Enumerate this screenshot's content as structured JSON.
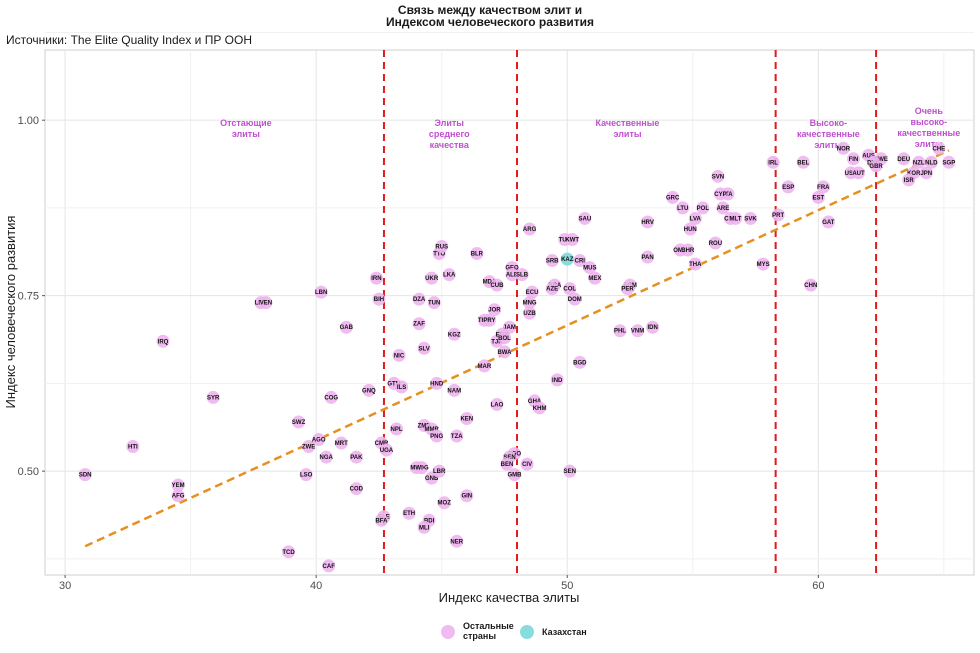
{
  "title_line1": "Связь между качеством элит и",
  "title_line2": "Индексом человеческого развития",
  "subtitle": "Источники: The Elite Quality Index и ПР ООН",
  "chart_data": {
    "type": "scatter",
    "xlabel": "Индекс качества элиты",
    "ylabel": "Индекс человеческого развития",
    "xlim": [
      29.2,
      66.2
    ],
    "ylim": [
      0.352,
      1.1
    ],
    "x_ticks": [
      30,
      40,
      50,
      60
    ],
    "y_ticks": [
      0.5,
      0.75,
      1.0
    ],
    "y_tick_labels": [
      "0.50",
      "0.75",
      "1.00"
    ],
    "grid": true,
    "colors": {
      "other": "#eeb4ee",
      "kazakhstan": "#7ad9d9",
      "trend": "#e69020",
      "threshold": "#dd1c1c",
      "band_label": "#c04fd0"
    },
    "thresholds": [
      42.7,
      48.0,
      58.3,
      62.3
    ],
    "bands": [
      {
        "lines": [
          "Отстающие",
          "элиты"
        ],
        "x": 37.2
      },
      {
        "lines": [
          "Элиты",
          "среднего",
          "качества"
        ],
        "x": 45.3
      },
      {
        "lines": [
          "Качественные",
          "элиты"
        ],
        "x": 52.4
      },
      {
        "lines": [
          "Высоко-",
          "качественные",
          "элиты"
        ],
        "x": 60.4
      },
      {
        "lines": [
          "Очень",
          "высоко-",
          "качественные",
          "элиты"
        ],
        "x": 64.4
      }
    ],
    "trend": {
      "x": [
        30.8,
        65.2
      ],
      "y": [
        0.393,
        0.957
      ]
    },
    "legend": {
      "position": "bottom",
      "items": [
        {
          "label_lines": [
            "Остальные",
            "страны"
          ],
          "group": "other"
        },
        {
          "label_lines": [
            "Казахстан"
          ],
          "group": "kazakhstan"
        }
      ]
    },
    "points": [
      {
        "code": "SDN",
        "x": 30.8,
        "y": 0.495
      },
      {
        "code": "HTI",
        "x": 32.7,
        "y": 0.535
      },
      {
        "code": "IRQ",
        "x": 33.9,
        "y": 0.685
      },
      {
        "code": "YEM",
        "x": 34.5,
        "y": 0.48
      },
      {
        "code": "AFG",
        "x": 34.5,
        "y": 0.465
      },
      {
        "code": "SYR",
        "x": 35.9,
        "y": 0.605
      },
      {
        "code": "LBN",
        "x": 37.8,
        "y": 0.74
      },
      {
        "code": "VEN",
        "x": 38.0,
        "y": 0.74
      },
      {
        "code": "TCD",
        "x": 38.9,
        "y": 0.385
      },
      {
        "code": "SWZ",
        "x": 39.3,
        "y": 0.57
      },
      {
        "code": "ZWE",
        "x": 39.7,
        "y": 0.535
      },
      {
        "code": "LSO",
        "x": 39.6,
        "y": 0.495
      },
      {
        "code": "AGO",
        "x": 40.1,
        "y": 0.545
      },
      {
        "code": "LBN",
        "x": 40.2,
        "y": 0.755
      },
      {
        "code": "NGA",
        "x": 40.4,
        "y": 0.52
      },
      {
        "code": "CAF",
        "x": 40.5,
        "y": 0.365
      },
      {
        "code": "COG",
        "x": 40.6,
        "y": 0.605
      },
      {
        "code": "MRT",
        "x": 41.0,
        "y": 0.54
      },
      {
        "code": "GAB",
        "x": 41.2,
        "y": 0.705
      },
      {
        "code": "PAK",
        "x": 41.6,
        "y": 0.52
      },
      {
        "code": "COD",
        "x": 41.6,
        "y": 0.475
      },
      {
        "code": "GNQ",
        "x": 42.1,
        "y": 0.615
      },
      {
        "code": "IRN",
        "x": 42.4,
        "y": 0.775
      },
      {
        "code": "BIH",
        "x": 42.5,
        "y": 0.745
      },
      {
        "code": "SLE",
        "x": 42.7,
        "y": 0.435
      },
      {
        "code": "BFA",
        "x": 42.6,
        "y": 0.43
      },
      {
        "code": "CMR",
        "x": 42.6,
        "y": 0.54
      },
      {
        "code": "UGA",
        "x": 42.8,
        "y": 0.53
      },
      {
        "code": "GTM",
        "x": 43.1,
        "y": 0.625
      },
      {
        "code": "ILS",
        "x": 43.4,
        "y": 0.62
      },
      {
        "code": "NPL",
        "x": 43.2,
        "y": 0.56
      },
      {
        "code": "NIC",
        "x": 43.3,
        "y": 0.665
      },
      {
        "code": "ETH",
        "x": 43.7,
        "y": 0.44
      },
      {
        "code": "DZA",
        "x": 44.1,
        "y": 0.745
      },
      {
        "code": "ZAF",
        "x": 44.1,
        "y": 0.71
      },
      {
        "code": "SLV",
        "x": 44.3,
        "y": 0.675
      },
      {
        "code": "UKR",
        "x": 44.6,
        "y": 0.775
      },
      {
        "code": "TTO",
        "x": 44.9,
        "y": 0.81
      },
      {
        "code": "RUS",
        "x": 45.0,
        "y": 0.82
      },
      {
        "code": "TUN",
        "x": 44.7,
        "y": 0.74
      },
      {
        "code": "HND",
        "x": 44.8,
        "y": 0.625
      },
      {
        "code": "ZMB",
        "x": 44.3,
        "y": 0.565
      },
      {
        "code": "MMR",
        "x": 44.6,
        "y": 0.56
      },
      {
        "code": "PNG",
        "x": 44.8,
        "y": 0.55
      },
      {
        "code": "MDG",
        "x": 44.2,
        "y": 0.505
      },
      {
        "code": "MWI",
        "x": 44.0,
        "y": 0.505
      },
      {
        "code": "GNB",
        "x": 44.6,
        "y": 0.49
      },
      {
        "code": "LBR",
        "x": 44.9,
        "y": 0.5
      },
      {
        "code": "MOZ",
        "x": 45.1,
        "y": 0.455
      },
      {
        "code": "BDI",
        "x": 44.5,
        "y": 0.43
      },
      {
        "code": "MLI",
        "x": 44.3,
        "y": 0.42
      },
      {
        "code": "NER",
        "x": 45.6,
        "y": 0.4
      },
      {
        "code": "LKA",
        "x": 45.3,
        "y": 0.78
      },
      {
        "code": "KGZ",
        "x": 45.5,
        "y": 0.695
      },
      {
        "code": "NAM",
        "x": 45.5,
        "y": 0.615
      },
      {
        "code": "TZA",
        "x": 45.6,
        "y": 0.55
      },
      {
        "code": "GIN",
        "x": 46.0,
        "y": 0.465
      },
      {
        "code": "KEN",
        "x": 46.0,
        "y": 0.575
      },
      {
        "code": "BLR",
        "x": 46.4,
        "y": 0.81
      },
      {
        "code": "MDA",
        "x": 46.9,
        "y": 0.77
      },
      {
        "code": "CUB",
        "x": 47.2,
        "y": 0.765
      },
      {
        "code": "MAR",
        "x": 46.7,
        "y": 0.65
      },
      {
        "code": "TKM",
        "x": 46.7,
        "y": 0.715
      },
      {
        "code": "PRY",
        "x": 46.9,
        "y": 0.715
      },
      {
        "code": "JOR",
        "x": 47.1,
        "y": 0.73
      },
      {
        "code": "LAO",
        "x": 47.2,
        "y": 0.595
      },
      {
        "code": "TJK",
        "x": 47.2,
        "y": 0.685
      },
      {
        "code": "JAM",
        "x": 47.7,
        "y": 0.705
      },
      {
        "code": "EGY",
        "x": 47.4,
        "y": 0.695
      },
      {
        "code": "BOL",
        "x": 47.5,
        "y": 0.69
      },
      {
        "code": "BWA",
        "x": 47.5,
        "y": 0.67
      },
      {
        "code": "GEO",
        "x": 47.8,
        "y": 0.79
      },
      {
        "code": "ALB",
        "x": 47.8,
        "y": 0.78
      },
      {
        "code": "SLB",
        "x": 48.2,
        "y": 0.78
      },
      {
        "code": "TGO",
        "x": 47.9,
        "y": 0.525
      },
      {
        "code": "SEN",
        "x": 47.7,
        "y": 0.52
      },
      {
        "code": "BEN",
        "x": 47.6,
        "y": 0.51
      },
      {
        "code": "GMB",
        "x": 47.9,
        "y": 0.495
      },
      {
        "code": "CIV",
        "x": 48.4,
        "y": 0.51
      },
      {
        "code": "ARG",
        "x": 48.5,
        "y": 0.845
      },
      {
        "code": "ECU",
        "x": 48.6,
        "y": 0.755
      },
      {
        "code": "MNG",
        "x": 48.5,
        "y": 0.74
      },
      {
        "code": "UZB",
        "x": 48.5,
        "y": 0.725
      },
      {
        "code": "GHA",
        "x": 48.7,
        "y": 0.6
      },
      {
        "code": "KHM",
        "x": 48.9,
        "y": 0.59
      },
      {
        "code": "SRB",
        "x": 49.4,
        "y": 0.8
      },
      {
        "code": "BRA",
        "x": 49.5,
        "y": 0.765
      },
      {
        "code": "AZE",
        "x": 49.4,
        "y": 0.76
      },
      {
        "code": "IND",
        "x": 49.6,
        "y": 0.63
      },
      {
        "code": "TUR",
        "x": 49.9,
        "y": 0.83
      },
      {
        "code": "KWT",
        "x": 50.2,
        "y": 0.83
      },
      {
        "code": "SAU",
        "x": 50.7,
        "y": 0.86
      },
      {
        "code": "CRI",
        "x": 50.5,
        "y": 0.8
      },
      {
        "code": "COL",
        "x": 50.1,
        "y": 0.76
      },
      {
        "code": "DOM",
        "x": 50.3,
        "y": 0.745
      },
      {
        "code": "MUS",
        "x": 50.9,
        "y": 0.79
      },
      {
        "code": "MEX",
        "x": 51.1,
        "y": 0.775
      },
      {
        "code": "BGD",
        "x": 50.5,
        "y": 0.655
      },
      {
        "code": "SEN",
        "x": 50.1,
        "y": 0.5
      },
      {
        "code": "ARM",
        "x": 52.5,
        "y": 0.765
      },
      {
        "code": "PER",
        "x": 52.4,
        "y": 0.76
      },
      {
        "code": "PHL",
        "x": 52.1,
        "y": 0.7
      },
      {
        "code": "VNM",
        "x": 52.8,
        "y": 0.7
      },
      {
        "code": "IDN",
        "x": 53.4,
        "y": 0.705
      },
      {
        "code": "HRV",
        "x": 53.2,
        "y": 0.855
      },
      {
        "code": "PAN",
        "x": 53.2,
        "y": 0.805
      },
      {
        "code": "GRC",
        "x": 54.2,
        "y": 0.89
      },
      {
        "code": "LTU",
        "x": 54.6,
        "y": 0.875
      },
      {
        "code": "OMN",
        "x": 54.5,
        "y": 0.815
      },
      {
        "code": "BHR",
        "x": 54.8,
        "y": 0.815
      },
      {
        "code": "HUN",
        "x": 54.9,
        "y": 0.845
      },
      {
        "code": "LVA",
        "x": 55.1,
        "y": 0.86
      },
      {
        "code": "THA",
        "x": 55.1,
        "y": 0.795
      },
      {
        "code": "POL",
        "x": 55.4,
        "y": 0.875
      },
      {
        "code": "ROU",
        "x": 55.9,
        "y": 0.825
      },
      {
        "code": "SVN",
        "x": 56.0,
        "y": 0.92
      },
      {
        "code": "ITA",
        "x": 56.4,
        "y": 0.895
      },
      {
        "code": "CYP",
        "x": 56.1,
        "y": 0.895
      },
      {
        "code": "ARE",
        "x": 56.2,
        "y": 0.875
      },
      {
        "code": "CHL",
        "x": 56.5,
        "y": 0.86
      },
      {
        "code": "MLT",
        "x": 56.7,
        "y": 0.86
      },
      {
        "code": "SVK",
        "x": 57.3,
        "y": 0.86
      },
      {
        "code": "MYS",
        "x": 57.8,
        "y": 0.795
      },
      {
        "code": "IRL",
        "x": 58.2,
        "y": 0.94
      },
      {
        "code": "PRT",
        "x": 58.4,
        "y": 0.865
      },
      {
        "code": "ESP",
        "x": 58.8,
        "y": 0.905
      },
      {
        "code": "BEL",
        "x": 59.4,
        "y": 0.94
      },
      {
        "code": "EST",
        "x": 60.0,
        "y": 0.89
      },
      {
        "code": "FRA",
        "x": 60.2,
        "y": 0.905
      },
      {
        "code": "GAT",
        "x": 60.4,
        "y": 0.855
      },
      {
        "code": "CHN",
        "x": 59.7,
        "y": 0.765
      },
      {
        "code": "NOR",
        "x": 61.0,
        "y": 0.96
      },
      {
        "code": "FIN",
        "x": 61.4,
        "y": 0.945
      },
      {
        "code": "USA",
        "x": 61.3,
        "y": 0.925
      },
      {
        "code": "AUT",
        "x": 61.6,
        "y": 0.925
      },
      {
        "code": "AUS",
        "x": 62.0,
        "y": 0.95
      },
      {
        "code": "SWE",
        "x": 62.5,
        "y": 0.945
      },
      {
        "code": "DNK",
        "x": 62.2,
        "y": 0.94
      },
      {
        "code": "GBR",
        "x": 62.3,
        "y": 0.935
      },
      {
        "code": "DEU",
        "x": 63.4,
        "y": 0.945
      },
      {
        "code": "NZL",
        "x": 64.0,
        "y": 0.94
      },
      {
        "code": "KOR",
        "x": 63.8,
        "y": 0.925
      },
      {
        "code": "ISR",
        "x": 63.6,
        "y": 0.915
      },
      {
        "code": "JPN",
        "x": 64.3,
        "y": 0.925
      },
      {
        "code": "NLD",
        "x": 64.5,
        "y": 0.94
      },
      {
        "code": "CHE",
        "x": 64.8,
        "y": 0.96
      },
      {
        "code": "SGP",
        "x": 65.2,
        "y": 0.94
      },
      {
        "code": "KAZ",
        "x": 50.0,
        "y": 0.802,
        "kz": true
      }
    ]
  }
}
